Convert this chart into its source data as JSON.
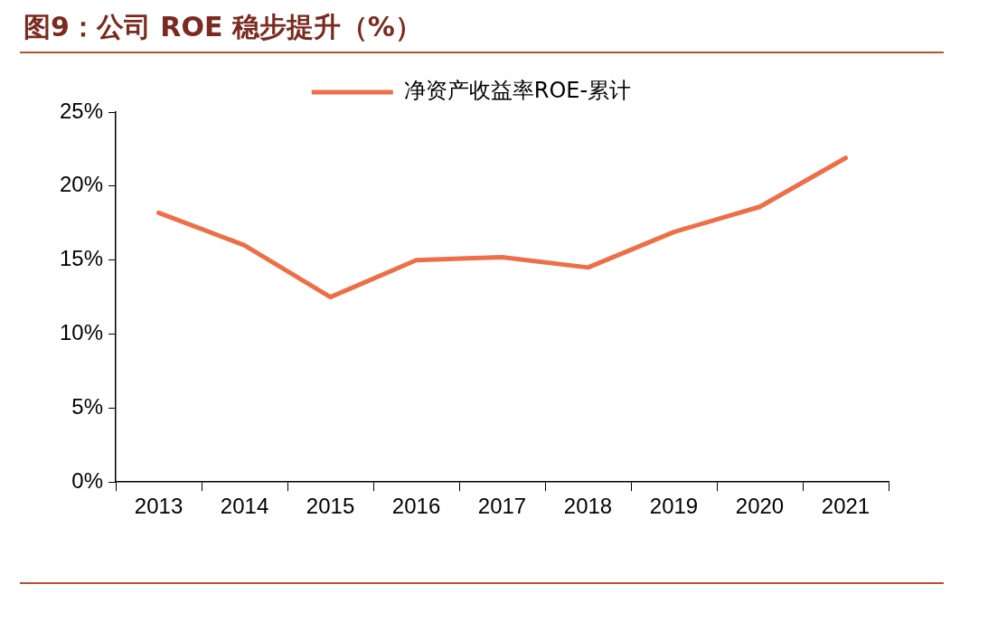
{
  "chart_data": {
    "type": "line",
    "title": "图9：公司 ROE 稳步提升（%）",
    "categories": [
      "2013",
      "2014",
      "2015",
      "2016",
      "2017",
      "2018",
      "2019",
      "2020",
      "2021"
    ],
    "series": [
      {
        "name": "净资产收益率ROE-累计",
        "color": "#ee6f47",
        "values": [
          18.2,
          16.0,
          12.5,
          15.0,
          15.2,
          14.5,
          16.9,
          18.6,
          21.9
        ]
      }
    ],
    "ylim": [
      0,
      25
    ],
    "yticks": [
      {
        "value": 0,
        "label": "0%"
      },
      {
        "value": 5,
        "label": "5%"
      },
      {
        "value": 10,
        "label": "10%"
      },
      {
        "value": 15,
        "label": "15%"
      },
      {
        "value": 20,
        "label": "20%"
      },
      {
        "value": 25,
        "label": "25%"
      }
    ],
    "grid": false,
    "legend": "top",
    "marker": "none",
    "line_style": "solid"
  }
}
